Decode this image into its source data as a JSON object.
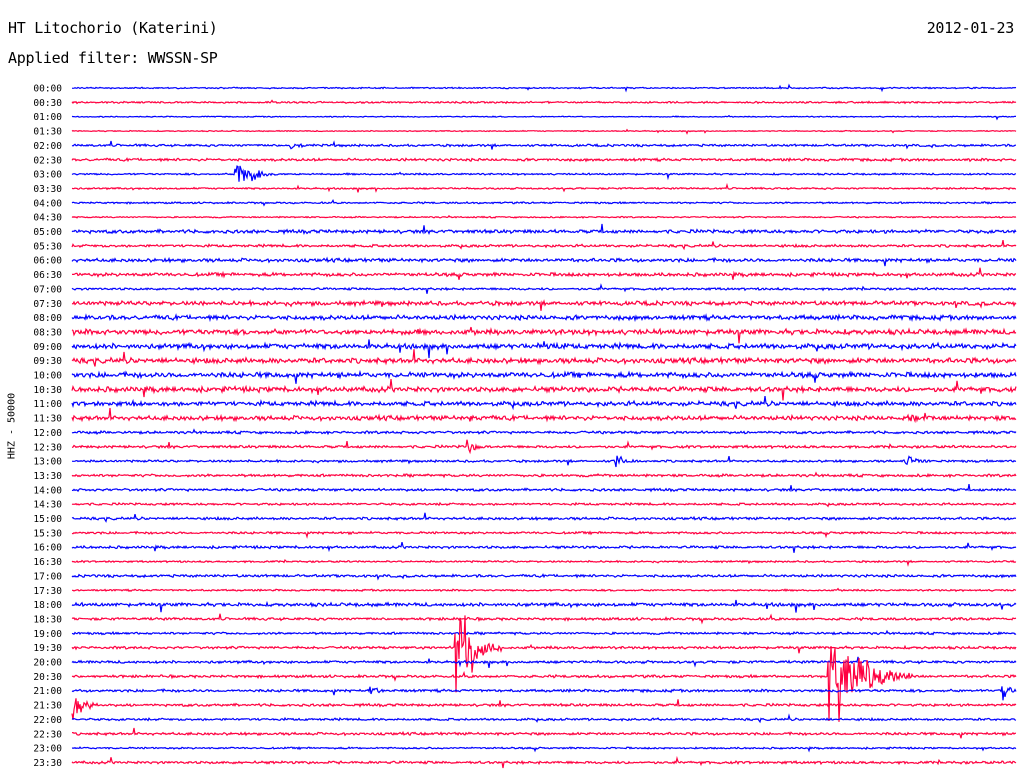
{
  "header": {
    "station": "HT Litochorio (Katerini)",
    "date": "2012-01-23",
    "filter": "Applied filter: WWSSN-SP"
  },
  "chart_data": {
    "type": "helicorder",
    "channel_label": "HHZ - 50000",
    "trace_colors": [
      "#0000ff",
      "#ff0040"
    ],
    "rows": [
      "00:00",
      "00:30",
      "01:00",
      "01:30",
      "02:00",
      "02:30",
      "03:00",
      "03:30",
      "04:00",
      "04:30",
      "05:00",
      "05:30",
      "06:00",
      "06:30",
      "07:00",
      "07:30",
      "08:00",
      "08:30",
      "09:00",
      "09:30",
      "10:00",
      "10:30",
      "11:00",
      "11:30",
      "12:00",
      "12:30",
      "13:00",
      "13:30",
      "14:00",
      "14:30",
      "15:00",
      "15:30",
      "16:00",
      "16:30",
      "17:00",
      "17:30",
      "18:00",
      "18:30",
      "19:00",
      "19:30",
      "20:00",
      "20:30",
      "21:00",
      "21:30",
      "22:00",
      "22:30",
      "23:00",
      "23:30"
    ],
    "noise_level": [
      0.8,
      1,
      0.6,
      0.6,
      1.3,
      1.5,
      1,
      1,
      1,
      0.8,
      2,
      1.5,
      2,
      2,
      1.3,
      2.4,
      2.6,
      3,
      3,
      3,
      3,
      3,
      2.6,
      2.6,
      1.5,
      1.5,
      1.3,
      1.5,
      1.5,
      1.3,
      1.5,
      1.3,
      1.5,
      1,
      1.5,
      1,
      2,
      1.5,
      1.3,
      1.5,
      1.5,
      1.5,
      1.5,
      1.5,
      1.3,
      1.5,
      1,
      1.5
    ],
    "events": [
      {
        "row": "03:00",
        "x_frac": 0.172,
        "amplitude": 22,
        "duration": 0.04
      },
      {
        "row": "03:00",
        "x_frac": 0.19,
        "amplitude": 14,
        "duration": 0.03
      },
      {
        "row": "02:00",
        "x_frac": 0.23,
        "amplitude": 4,
        "duration": 0.05
      },
      {
        "row": "09:00",
        "x_frac": 0.5,
        "amplitude": 7,
        "duration": 0.02
      },
      {
        "row": "11:00",
        "x_frac": 0.06,
        "amplitude": 5,
        "duration": 0.04
      },
      {
        "row": "11:30",
        "x_frac": 0.42,
        "amplitude": 8,
        "duration": 0.02
      },
      {
        "row": "11:30",
        "x_frac": 0.885,
        "amplitude": 8,
        "duration": 0.03
      },
      {
        "row": "12:30",
        "x_frac": 0.418,
        "amplitude": 10,
        "duration": 0.03
      },
      {
        "row": "13:00",
        "x_frac": 0.575,
        "amplitude": 10,
        "duration": 0.03
      },
      {
        "row": "13:00",
        "x_frac": 0.88,
        "amplitude": 9,
        "duration": 0.04
      },
      {
        "row": "19:30",
        "x_frac": 0.405,
        "amplitude": 75,
        "duration": 0.05
      },
      {
        "row": "20:30",
        "x_frac": 0.8,
        "amplitude": 72,
        "duration": 0.09
      },
      {
        "row": "21:00",
        "x_frac": 0.315,
        "amplitude": 7,
        "duration": 0.03
      },
      {
        "row": "21:30",
        "x_frac": 0.0,
        "amplitude": 18,
        "duration": 0.04
      },
      {
        "row": "21:00",
        "x_frac": 0.985,
        "amplitude": 20,
        "duration": 0.015
      }
    ]
  }
}
